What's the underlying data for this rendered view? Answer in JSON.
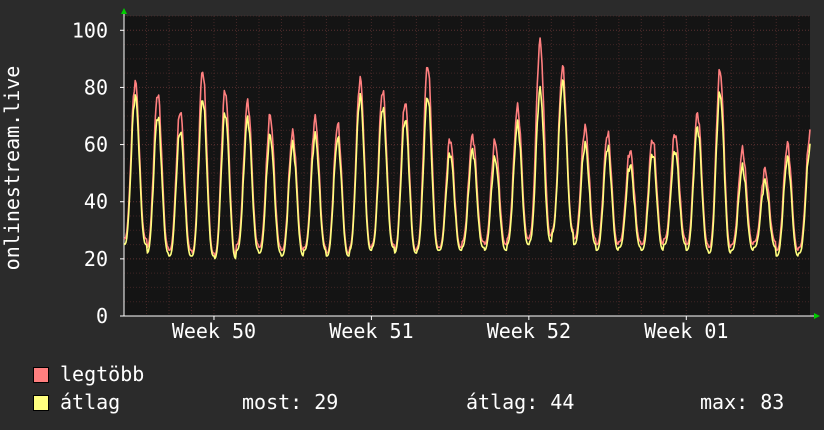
{
  "chart_data": {
    "type": "line",
    "ylabel": "onlinestream.live",
    "ylim": [
      0,
      105
    ],
    "yticks": [
      0,
      20,
      40,
      60,
      80,
      100
    ],
    "xticks": [
      {
        "label": "Week 50",
        "day": 4
      },
      {
        "label": "Week 51",
        "day": 11
      },
      {
        "label": "Week 52",
        "day": 18
      },
      {
        "label": "Week 01",
        "day": 25
      }
    ],
    "x_range_days": [
      0,
      30.5
    ],
    "grid": true,
    "series": [
      {
        "name": "legtöbb",
        "color": "#ff7f7f",
        "daily_peaks": [
          82,
          78,
          72,
          86,
          79,
          75,
          70,
          64,
          69,
          67,
          83,
          79,
          75,
          88,
          62,
          63,
          61,
          73,
          96,
          87,
          66,
          64,
          58,
          62,
          64,
          71,
          86,
          58,
          51,
          60,
          64,
          57,
          72,
          82,
          74
        ],
        "daily_lows": [
          27,
          24,
          23,
          22,
          21,
          25,
          24,
          23,
          24,
          22,
          24,
          25,
          23,
          24,
          24,
          26,
          25,
          27,
          28,
          30,
          27,
          25,
          26,
          25,
          27,
          25,
          24,
          25,
          26,
          23,
          24,
          24,
          22,
          24,
          29
        ]
      },
      {
        "name": "átlag",
        "color": "#ffff7f",
        "daily_peaks": [
          77,
          70,
          65,
          76,
          71,
          69,
          63,
          60,
          63,
          62,
          77,
          73,
          69,
          77,
          57,
          58,
          55,
          67,
          79,
          82,
          60,
          59,
          53,
          57,
          58,
          66,
          78,
          52,
          47,
          55,
          59,
          52,
          66,
          75,
          71
        ],
        "daily_lows": [
          25,
          22,
          21,
          21,
          20,
          23,
          22,
          21,
          23,
          21,
          23,
          24,
          22,
          23,
          23,
          24,
          23,
          25,
          26,
          29,
          25,
          23,
          24,
          23,
          25,
          23,
          22,
          23,
          24,
          21,
          22,
          22,
          21,
          22,
          27
        ]
      }
    ]
  },
  "legend": {
    "max_label": "legtöbb",
    "avg_label": "átlag",
    "stat_now": "most: 29",
    "stat_avg": "átlag: 44",
    "stat_max": "max: 83"
  },
  "colors": {
    "background": "#2b2b2b",
    "plot_background": "#141414",
    "grid": "#5a3030",
    "axis": "#ffffff",
    "arrow": "#00cc00"
  }
}
